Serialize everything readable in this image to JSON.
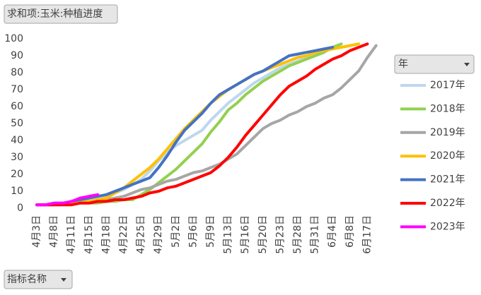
{
  "chart_data": {
    "type": "line",
    "title": "求和项:玉米:种植进度",
    "categories": [
      "4月3日",
      null,
      "4月8日",
      null,
      "4月11日",
      null,
      "4月15日",
      null,
      "4月18日",
      null,
      "4月22日",
      null,
      "4月25日",
      null,
      "4月29日",
      null,
      "5月2日",
      null,
      "5月6日",
      null,
      "5月9日",
      null,
      "5月13日",
      null,
      "5月16日",
      null,
      "5月20日",
      null,
      "5月23日",
      null,
      "5月28日",
      null,
      "5月31日",
      null,
      "6月4日",
      null,
      "6月8日",
      null,
      "6月17日",
      null
    ],
    "ylim": [
      0,
      100
    ],
    "yticks": [
      0,
      10,
      20,
      30,
      40,
      50,
      60,
      70,
      80,
      90,
      100
    ],
    "legend_title": "年",
    "series": [
      {
        "name": "2017年",
        "color": "#bdd7ee",
        "values": [
          2,
          2,
          2,
          3,
          3,
          4,
          5,
          6,
          7,
          9,
          11,
          14,
          17,
          22,
          28,
          33,
          37,
          40,
          43,
          46,
          52,
          57,
          62,
          66,
          70,
          74,
          77,
          80,
          83,
          85,
          87,
          89,
          91,
          93,
          null,
          null,
          null,
          null,
          null,
          null
        ]
      },
      {
        "name": "2018年",
        "color": "#92d050",
        "values": [
          2,
          2,
          2,
          2,
          3,
          3,
          3,
          3,
          4,
          4,
          5,
          5,
          8,
          11,
          15,
          19,
          23,
          28,
          33,
          38,
          45,
          51,
          58,
          62,
          67,
          71,
          75,
          78,
          81,
          84,
          86,
          88,
          90,
          92,
          95,
          97,
          null,
          null,
          null,
          null
        ]
      },
      {
        "name": "2019年",
        "color": "#a6a6a6",
        "values": [
          2,
          2,
          2,
          3,
          3,
          4,
          4,
          5,
          5,
          6,
          7,
          9,
          11,
          12,
          14,
          16,
          17,
          19,
          21,
          22,
          24,
          26,
          29,
          32,
          37,
          42,
          47,
          50,
          52,
          55,
          57,
          60,
          62,
          65,
          67,
          71,
          76,
          81,
          89,
          96
        ]
      },
      {
        "name": "2020年",
        "color": "#ffc000",
        "values": [
          2,
          2,
          2,
          3,
          3,
          4,
          4,
          5,
          6,
          9,
          12,
          16,
          20,
          24,
          29,
          35,
          41,
          47,
          52,
          57,
          62,
          66,
          70,
          73,
          76,
          79,
          81,
          83,
          85,
          87,
          89,
          90,
          92,
          93,
          94,
          95,
          96,
          97,
          null,
          null
        ]
      },
      {
        "name": "2021年",
        "color": "#4472c4",
        "values": [
          2,
          2,
          3,
          3,
          4,
          5,
          6,
          7,
          8,
          10,
          12,
          14,
          16,
          18,
          24,
          31,
          39,
          46,
          51,
          56,
          62,
          67,
          70,
          73,
          76,
          79,
          81,
          84,
          87,
          90,
          91,
          92,
          93,
          94,
          95,
          null,
          null,
          null,
          null,
          null
        ]
      },
      {
        "name": "2022年",
        "color": "#ff0000",
        "values": [
          2,
          2,
          2,
          2,
          2,
          3,
          3,
          4,
          4,
          5,
          5,
          6,
          7,
          9,
          10,
          12,
          13,
          15,
          17,
          19,
          21,
          25,
          30,
          36,
          43,
          49,
          55,
          61,
          67,
          72,
          75,
          78,
          82,
          85,
          88,
          90,
          93,
          95,
          97,
          null
        ]
      },
      {
        "name": "2023年",
        "color": "#ff00ff",
        "values": [
          2,
          2,
          3,
          3,
          4,
          6,
          7,
          8,
          null,
          null,
          null,
          null,
          null,
          null,
          null,
          null,
          null,
          null,
          null,
          null,
          null,
          null,
          null,
          null,
          null,
          null,
          null,
          null,
          null,
          null,
          null,
          null,
          null,
          null,
          null,
          null,
          null,
          null,
          null,
          null
        ]
      }
    ]
  },
  "controls": {
    "filter_button": "指标名称"
  }
}
